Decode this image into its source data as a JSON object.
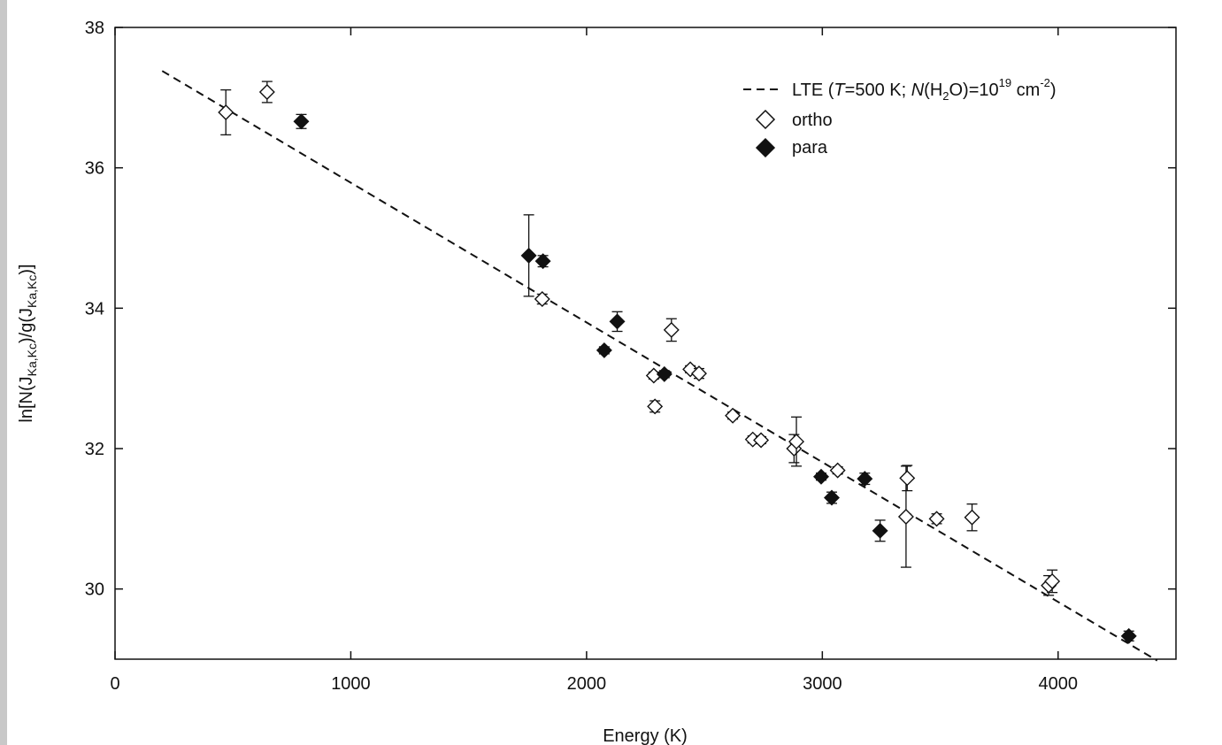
{
  "chart_data": {
    "type": "scatter",
    "xlabel": "Energy (K)",
    "ylabel": "ln[N(J_Ka,Kc)/g(J_Ka,Kc)]",
    "xlim": [
      0,
      4500
    ],
    "ylim": [
      29,
      38
    ],
    "x_ticks": [
      "0",
      "1000",
      "2000",
      "3000",
      "4000"
    ],
    "y_ticks": [
      "30",
      "32",
      "34",
      "36",
      "38"
    ],
    "grid": false,
    "legend_position": "top-right",
    "legend": {
      "lte_label": "LTE (T=500 K; N(H2O)=10^19 cm^-2)",
      "lte_parts": {
        "a": "LTE (",
        "T": "T",
        "b": "=500 K; ",
        "N": "N",
        "c": "(H",
        "sub2": "2",
        "d": "O)=10",
        "exp19": "19",
        "e": " cm",
        "expm2": "-2",
        "f": ")"
      },
      "ortho": "ortho",
      "para": "para"
    },
    "lte_line": {
      "x": [
        200,
        4420
      ],
      "y": [
        37.38,
        28.98
      ]
    },
    "series": [
      {
        "name": "ortho",
        "marker": "open-diamond",
        "points": [
          {
            "x": 470,
            "y": 36.79,
            "err": 0.32
          },
          {
            "x": 645,
            "y": 37.08,
            "err": 0.15
          },
          {
            "x": 1812,
            "y": 34.13,
            "err": 0.07
          },
          {
            "x": 2285,
            "y": 33.04,
            "err": 0.05
          },
          {
            "x": 2290,
            "y": 32.6,
            "err": 0.08
          },
          {
            "x": 2360,
            "y": 33.69,
            "err": 0.16
          },
          {
            "x": 2440,
            "y": 33.13,
            "err": 0.05
          },
          {
            "x": 2477,
            "y": 33.07,
            "err": 0.07
          },
          {
            "x": 2620,
            "y": 32.47,
            "err": 0.05
          },
          {
            "x": 2705,
            "y": 32.13,
            "err": 0.05
          },
          {
            "x": 2740,
            "y": 32.12,
            "err": 0.05
          },
          {
            "x": 2880,
            "y": 32.0,
            "err": 0.2
          },
          {
            "x": 2890,
            "y": 32.1,
            "err": 0.35
          },
          {
            "x": 3065,
            "y": 31.69,
            "err": 0.05
          },
          {
            "x": 3355,
            "y": 31.03,
            "err": 0.72
          },
          {
            "x": 3360,
            "y": 31.58,
            "err": 0.18
          },
          {
            "x": 3485,
            "y": 31.0,
            "err": 0.07
          },
          {
            "x": 3635,
            "y": 31.02,
            "err": 0.19
          },
          {
            "x": 3960,
            "y": 30.05,
            "err": 0.14
          },
          {
            "x": 3975,
            "y": 30.11,
            "err": 0.16
          }
        ]
      },
      {
        "name": "para",
        "marker": "filled-diamond",
        "points": [
          {
            "x": 790,
            "y": 36.66,
            "err": 0.1
          },
          {
            "x": 1755,
            "y": 34.75,
            "err": 0.58
          },
          {
            "x": 1815,
            "y": 34.67,
            "err": 0.08
          },
          {
            "x": 2075,
            "y": 33.4,
            "err": 0.05
          },
          {
            "x": 2130,
            "y": 33.81,
            "err": 0.14
          },
          {
            "x": 2330,
            "y": 33.06,
            "err": 0.05
          },
          {
            "x": 2995,
            "y": 31.6,
            "err": 0.05
          },
          {
            "x": 3040,
            "y": 31.3,
            "err": 0.08
          },
          {
            "x": 3180,
            "y": 31.57,
            "err": 0.08
          },
          {
            "x": 3245,
            "y": 30.83,
            "err": 0.15
          },
          {
            "x": 4300,
            "y": 29.33,
            "err": 0.07
          }
        ]
      }
    ]
  }
}
